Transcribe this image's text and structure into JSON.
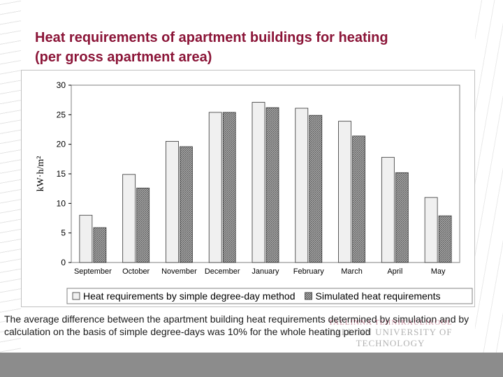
{
  "slide": {
    "title_line1": "Heat requirements of apartment buildings for heating",
    "title_line2": "(per gross apartment area)",
    "caption": "The average difference between the apartment building heat requirements determined by simulation and by calculation on the basis of simple degree-days was 10% for the whole heating period",
    "logo_line1": "TALLINNA TEHNIKAÜLIKOOL",
    "logo_line2": "TALLINN UNIVERSITY OF TECHNOLOGY"
  },
  "colors": {
    "title": "#8b1538",
    "series_1_fill": "#f0f0f0",
    "series_2_fill": "#9a9a9a",
    "footer": "#8c8c8c"
  },
  "chart_data": {
    "type": "bar",
    "categories": [
      "September",
      "October",
      "November",
      "December",
      "January",
      "February",
      "March",
      "April",
      "May"
    ],
    "series": [
      {
        "name": "Heat requirements by simple degree-day method",
        "values": [
          8.0,
          14.9,
          20.5,
          25.4,
          27.1,
          26.1,
          23.9,
          17.8,
          11.0
        ]
      },
      {
        "name": "Simulated heat requirements",
        "values": [
          5.9,
          12.6,
          19.6,
          25.4,
          26.2,
          24.9,
          21.4,
          15.2,
          7.9
        ]
      }
    ],
    "ylabel": "kW·h/m²",
    "ylim": [
      0,
      30
    ],
    "yticks": [
      0,
      5,
      10,
      15,
      20,
      25,
      30
    ],
    "grid": false,
    "legend": "bottom"
  }
}
